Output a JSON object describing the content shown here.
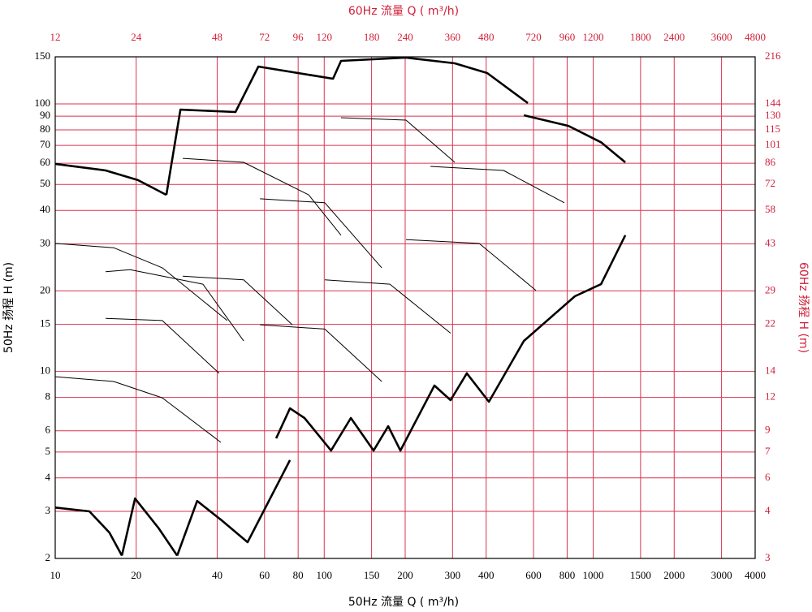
{
  "chart_data": {
    "type": "line",
    "title": "60Hz 流量 Q ( m³/h)",
    "x_label": "50Hz 流量 Q ( m³/h)",
    "y_label": "50Hz 扬程 H (m)",
    "y2_label": "60Hz 扬程 H (m)",
    "log_x": true,
    "log_y": true,
    "grid": true,
    "grid_color": "#d9334f",
    "axis2_color": "#d0203a",
    "xlim": [
      10,
      4000
    ],
    "xticks": [
      10,
      20,
      40,
      60,
      80,
      100,
      150,
      200,
      300,
      400,
      600,
      800,
      1000,
      1500,
      2000,
      3000,
      4000
    ],
    "x2lim": [
      12,
      4800
    ],
    "x2ticks": [
      12,
      24,
      48,
      72,
      96,
      120,
      180,
      240,
      360,
      480,
      720,
      960,
      1200,
      1800,
      2400,
      3600,
      4800
    ],
    "ylim": [
      2,
      150
    ],
    "yticks": [
      2,
      3,
      4,
      5,
      6,
      8,
      10,
      15,
      20,
      30,
      40,
      50,
      60,
      70,
      80,
      90,
      100,
      150
    ],
    "y2lim": [
      2.88,
      216
    ],
    "y2ticks": [
      {
        "value": 2.88,
        "label": "3"
      },
      {
        "value": 4.32,
        "label": "4"
      },
      {
        "value": 5.76,
        "label": "6"
      },
      {
        "value": 7.2,
        "label": "7"
      },
      {
        "value": 8.64,
        "label": "9"
      },
      {
        "value": 11.52,
        "label": "12"
      },
      {
        "value": 14.4,
        "label": "14"
      },
      {
        "value": 21.6,
        "label": "22"
      },
      {
        "value": 28.8,
        "label": "29"
      },
      {
        "value": 43.2,
        "label": "43"
      },
      {
        "value": 57.6,
        "label": "58"
      },
      72,
      {
        "value": 86.4,
        "label": "86"
      },
      {
        "value": 100.8,
        "label": "101"
      },
      {
        "value": 115.2,
        "label": "115"
      },
      {
        "value": 129.6,
        "label": "130"
      },
      144,
      216
    ],
    "series": [
      {
        "color": "#000000",
        "bold": true,
        "x": [
          10,
          13.4,
          15.9,
          17.7
        ],
        "values": [
          3.1,
          3.0,
          2.5,
          2.05
        ]
      },
      {
        "color": "#000000",
        "bold": true,
        "x": [
          17.7,
          19.8,
          24.2,
          28.4
        ],
        "values": [
          2.05,
          3.35,
          2.6,
          2.05
        ]
      },
      {
        "color": "#000000",
        "bold": true,
        "x": [
          28.4,
          33.7,
          41.3,
          51.9,
          74.6
        ],
        "values": [
          2.05,
          3.28,
          2.79,
          2.3,
          4.66
        ]
      },
      {
        "color": "#000000",
        "bold": true,
        "x": [
          66.3,
          74.6,
          84.5,
          106,
          125.6,
          152.6,
          172.9,
          191.9,
          256.9,
          295,
          339,
          409.5,
          552,
          855,
          1069,
          1316
        ],
        "values": [
          5.62,
          7.28,
          6.7,
          5.06,
          6.7,
          5.06,
          6.24,
          5.06,
          8.86,
          7.81,
          9.84,
          7.7,
          13.0,
          19.1,
          21.2,
          32.3
        ]
      },
      {
        "color": "#000000",
        "bold": true,
        "x": [
          552,
          809,
          1069,
          1316
        ],
        "values": [
          90.7,
          82.8,
          71.9,
          60.5
        ]
      },
      {
        "color": "#000000",
        "bold": true,
        "x": [
          25.9,
          29.2,
          46.8,
          56.9,
          107.8,
          115.5,
          201.4,
          305.8,
          403.6,
          571.5
        ],
        "values": [
          45.7,
          95.2,
          93.3,
          137.9,
          124.2,
          144.9,
          149,
          141.8,
          130.4,
          100.7
        ]
      },
      {
        "color": "#000000",
        "bold": true,
        "x": [
          10,
          15.4,
          20.3,
          25.9
        ],
        "values": [
          59.7,
          56.4,
          51.9,
          45.7
        ]
      },
      {
        "color": "#000000",
        "bold": false,
        "x": [
          10,
          16.5,
          25.0,
          43.6
        ],
        "values": [
          30.1,
          29.0,
          24.4,
          15.5
        ]
      },
      {
        "color": "#000000",
        "bold": false,
        "x": [
          10,
          16.5,
          25.0,
          41.3
        ],
        "values": [
          9.56,
          9.17,
          7.97,
          5.43
        ]
      },
      {
        "color": "#000000",
        "bold": false,
        "x": [
          15.4,
          19.0,
          35.4,
          50.2
        ],
        "values": [
          23.6,
          24.0,
          21.2,
          13.0
        ]
      },
      {
        "color": "#000000",
        "bold": false,
        "x": [
          29.8,
          50.2,
          87.5,
          115.5
        ],
        "values": [
          62.6,
          60.5,
          45.7,
          32.3
        ]
      },
      {
        "color": "#000000",
        "bold": false,
        "x": [
          57.7,
          100.5,
          163.6
        ],
        "values": [
          44.2,
          42.7,
          24.4
        ]
      },
      {
        "color": "#000000",
        "bold": false,
        "x": [
          100.5,
          175.4,
          295
        ],
        "values": [
          22.0,
          21.2,
          13.9
        ]
      },
      {
        "color": "#000000",
        "bold": false,
        "x": [
          115.5,
          201.4,
          305.8
        ],
        "values": [
          88.8,
          87.0,
          60.5
        ]
      },
      {
        "color": "#000000",
        "bold": false,
        "x": [
          201.4,
          376.6,
          612
        ],
        "values": [
          31.1,
          30.1,
          20.1
        ]
      },
      {
        "color": "#000000",
        "bold": false,
        "x": [
          57.7,
          100.5,
          163.6
        ],
        "values": [
          14.95,
          14.4,
          9.17
        ]
      },
      {
        "color": "#000000",
        "bold": false,
        "x": [
          15.4,
          25.0,
          40.7
        ],
        "values": [
          15.8,
          15.5,
          9.84
        ]
      },
      {
        "color": "#000000",
        "bold": false,
        "x": [
          248.2,
          464,
          781
        ],
        "values": [
          58.4,
          56.4,
          42.7
        ]
      },
      {
        "color": "#000000",
        "bold": false,
        "x": [
          29.8,
          50.2,
          76.1
        ],
        "values": [
          22.7,
          22.0,
          14.95
        ]
      }
    ]
  }
}
